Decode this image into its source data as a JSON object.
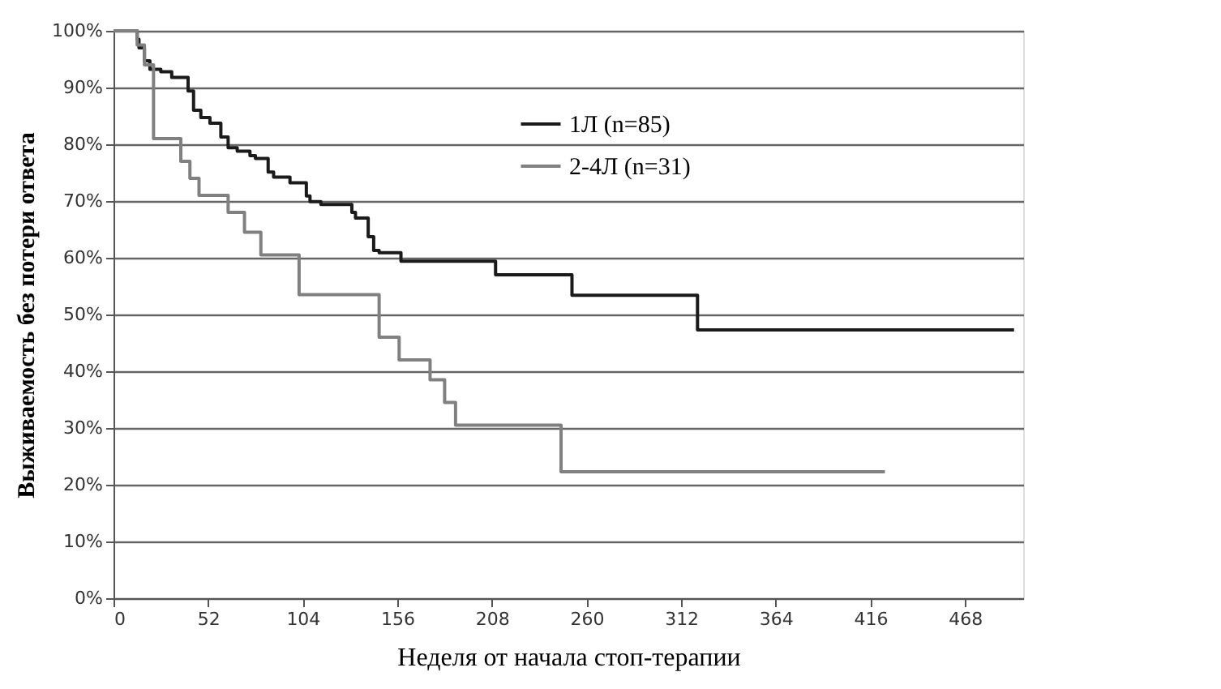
{
  "chart_data": {
    "type": "step",
    "xlabel": "Неделя от начала стоп-терапии",
    "ylabel": "Выживаемость без потери ответа",
    "xlim": [
      0,
      500
    ],
    "xticks": [
      0,
      52,
      104,
      156,
      208,
      260,
      312,
      364,
      416,
      468
    ],
    "ylim": [
      0,
      100
    ],
    "yticks": [
      {
        "value": 0,
        "label": "0%"
      },
      {
        "value": 10,
        "label": "10%"
      },
      {
        "value": 20,
        "label": "20%"
      },
      {
        "value": 30,
        "label": "30%"
      },
      {
        "value": 40,
        "label": "40%"
      },
      {
        "value": 50,
        "label": "50%"
      },
      {
        "value": 60,
        "label": "60%"
      },
      {
        "value": 70,
        "label": "70%"
      },
      {
        "value": 80,
        "label": "80%"
      },
      {
        "value": 90,
        "label": "90%"
      },
      {
        "value": 100,
        "label": "100%"
      }
    ],
    "grid": "y",
    "legend": "top",
    "marker": "none",
    "line_style": "solid",
    "series": [
      {
        "name": "1Л (n=85)",
        "color": "#1a1a1a",
        "x": [
          0,
          13,
          14,
          17,
          20,
          26,
          32,
          41,
          44,
          48,
          53,
          59,
          63,
          68,
          75,
          78,
          85,
          88,
          97,
          106,
          108,
          114,
          131,
          133,
          140,
          143,
          146,
          158,
          210,
          252,
          321,
          495
        ],
        "values": [
          100,
          98.5,
          97,
          94.7,
          93.2,
          92.8,
          91.8,
          89.4,
          86,
          84.7,
          83.7,
          81.3,
          79.4,
          78.8,
          78,
          77.5,
          75.1,
          74.2,
          73.2,
          70.9,
          69.9,
          69.4,
          68,
          67,
          63.7,
          61.3,
          60.9,
          59.4,
          57,
          53.4,
          47.3,
          47.3
        ]
      },
      {
        "name": "2-4Л (n=31)",
        "color": "#808080",
        "x": [
          0,
          13,
          17,
          22,
          37,
          42,
          47,
          63,
          72,
          81,
          102,
          146,
          157,
          174,
          182,
          188,
          246,
          424
        ],
        "values": [
          100,
          97.5,
          94,
          81,
          77,
          74,
          71,
          68,
          64.5,
          60.5,
          53.5,
          46,
          42,
          38.5,
          34.5,
          30.5,
          22.3,
          22.3
        ]
      }
    ]
  }
}
